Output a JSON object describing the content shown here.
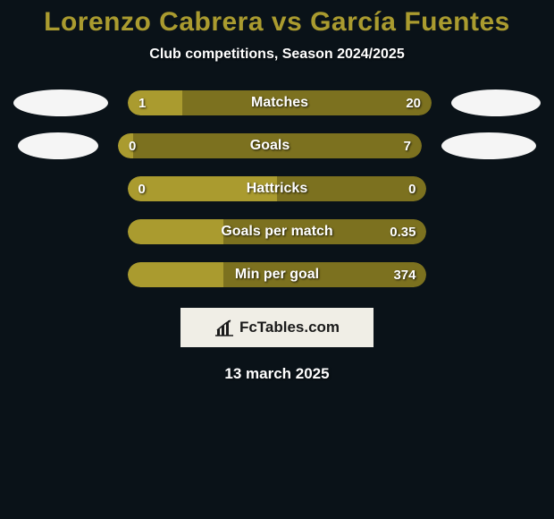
{
  "background_color": "#0a1218",
  "title": {
    "text": "Lorenzo Cabrera vs García Fuentes",
    "color": "#aa9b2f",
    "fontsize": 30
  },
  "subtitle": {
    "text": "Club competitions, Season 2024/2025",
    "color": "#ffffff",
    "fontsize": 16
  },
  "avatar_bg": "#f5f5f5",
  "bar_colors": {
    "left": "#aa9b2f",
    "right": "#7c711f"
  },
  "stats": [
    {
      "label": "Matches",
      "left_val": "1",
      "right_val": "20",
      "left_pct": 18,
      "show_avatars": true,
      "avatar_left_w": 106,
      "avatar_right_w": 100
    },
    {
      "label": "Goals",
      "left_val": "0",
      "right_val": "7",
      "left_pct": 5,
      "show_avatars": true,
      "avatar_left_w": 90,
      "avatar_right_w": 106
    },
    {
      "label": "Hattricks",
      "left_val": "0",
      "right_val": "0",
      "left_pct": 50,
      "show_avatars": false
    },
    {
      "label": "Goals per match",
      "left_val": "",
      "right_val": "0.35",
      "left_pct": 32,
      "show_avatars": false
    },
    {
      "label": "Min per goal",
      "left_val": "",
      "right_val": "374",
      "left_pct": 32,
      "show_avatars": false
    }
  ],
  "footer": {
    "brand": "FcTables.com",
    "badge_bg": "#f0eee6",
    "text_color": "#1a1a1a"
  },
  "date": "13 march 2025"
}
